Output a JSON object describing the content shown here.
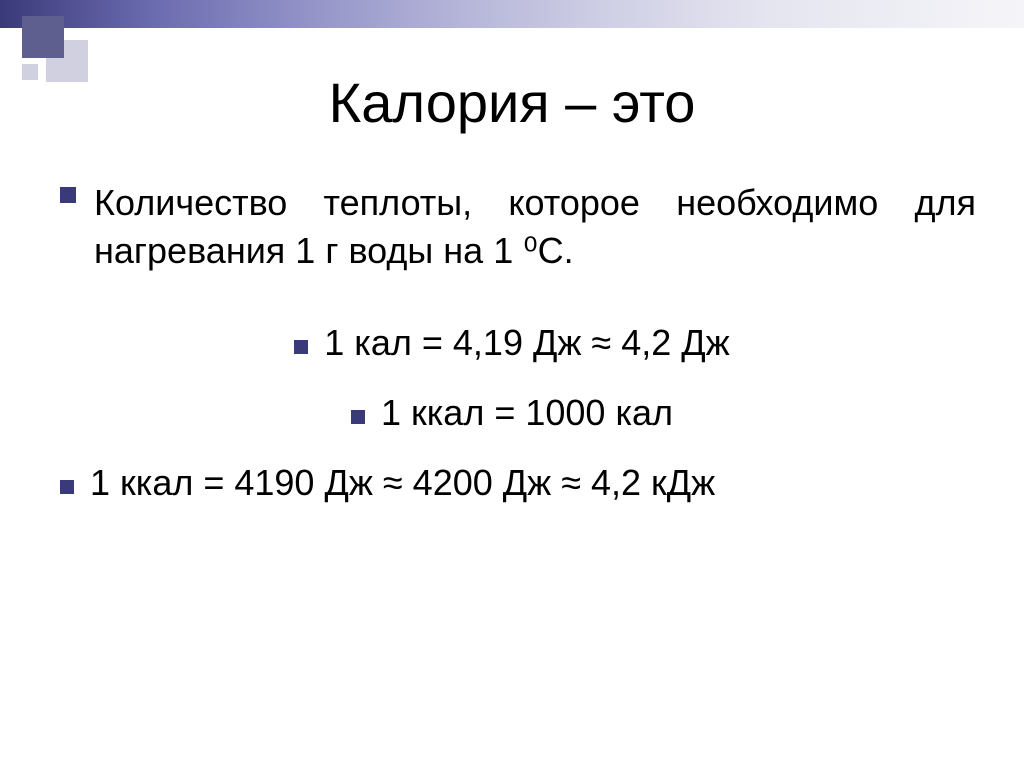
{
  "slide": {
    "title": "Калория – это",
    "definition": "Количество теплоты, которое необходимо для нагревания 1 г воды на 1 ⁰С.",
    "formula1": "1 кал = 4,19 Дж ≈ 4,2 Дж",
    "formula2": "1 ккал = 1000 кал",
    "formula3": "1 ккал = 4190 Дж ≈ 4200 Дж ≈ 4,2 кДж"
  },
  "style": {
    "title_fontsize": 56,
    "body_fontsize": 36,
    "title_color": "#000000",
    "body_color": "#000000",
    "bullet_color": "#3a3a7a",
    "gradient_start": "#3a3a7a",
    "gradient_end": "#f5f5f9",
    "background": "#ffffff",
    "corner_square_dark": "#5e5e8f",
    "corner_square_light": "#d0d0e0"
  }
}
